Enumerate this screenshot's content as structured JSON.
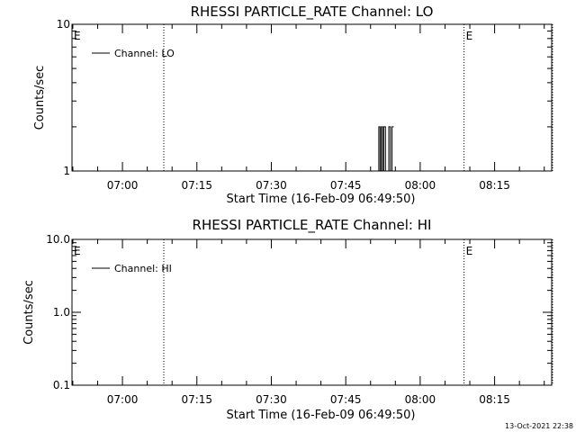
{
  "footer": {
    "timestamp": "13-Oct-2021 22:38"
  },
  "chart_data": [
    {
      "type": "line",
      "title": "RHESSI PARTICLE_RATE Channel: LO",
      "xlabel": "Start Time (16-Feb-09 06:49:50)",
      "ylabel": "Counts/sec",
      "yscale": "log",
      "xlim": [
        "06:49:50",
        "08:26:30"
      ],
      "ylim": [
        1,
        10
      ],
      "x_ticks": [
        "07:00",
        "07:15",
        "07:30",
        "07:45",
        "08:00",
        "08:15"
      ],
      "y_ticks": [
        {
          "value": 1,
          "label": "1"
        },
        {
          "value": 10,
          "label": "10"
        }
      ],
      "grid": false,
      "legend": {
        "position": "top-left",
        "entries": [
          "Channel: LO"
        ]
      },
      "event_lines": [
        "07:08:20",
        "08:08:50",
        "08:26:40"
      ],
      "event_markers": [
        {
          "x": "06:49:50",
          "label": "E"
        },
        {
          "x": "08:08:50",
          "label": "E"
        }
      ],
      "series": [
        {
          "name": "Channel: LO",
          "x": [
            "07:51:20",
            "07:51:40",
            "07:51:40",
            "07:51:55",
            "07:51:55",
            "07:52:10",
            "07:52:10",
            "07:52:25",
            "07:52:25",
            "07:52:40",
            "07:52:40",
            "07:53:00",
            "07:53:00",
            "07:53:40",
            "07:53:40",
            "07:54:00",
            "07:54:00",
            "07:54:20",
            "07:54:20",
            "07:54:40"
          ],
          "y": [
            1,
            1,
            2,
            2,
            1,
            1,
            2,
            2,
            1,
            1,
            2,
            2,
            1,
            1,
            2,
            2,
            1,
            1,
            2,
            2
          ]
        }
      ]
    },
    {
      "type": "line",
      "title": "RHESSI PARTICLE_RATE Channel: HI",
      "xlabel": "Start Time (16-Feb-09 06:49:50)",
      "ylabel": "Counts/sec",
      "yscale": "log",
      "xlim": [
        "06:49:50",
        "08:26:30"
      ],
      "ylim": [
        0.1,
        10
      ],
      "x_ticks": [
        "07:00",
        "07:15",
        "07:30",
        "07:45",
        "08:00",
        "08:15"
      ],
      "y_ticks": [
        {
          "value": 0.1,
          "label": "0.1"
        },
        {
          "value": 1,
          "label": "1.0"
        },
        {
          "value": 10,
          "label": "10.0"
        }
      ],
      "grid": false,
      "legend": {
        "position": "top-left",
        "entries": [
          "Channel: HI"
        ]
      },
      "event_lines": [
        "07:08:20",
        "08:08:50",
        "08:26:40"
      ],
      "event_markers": [
        {
          "x": "06:49:50",
          "label": "E"
        },
        {
          "x": "08:08:50",
          "label": "E"
        }
      ],
      "series": [
        {
          "name": "Channel: HI",
          "x": [],
          "y": []
        }
      ]
    }
  ]
}
